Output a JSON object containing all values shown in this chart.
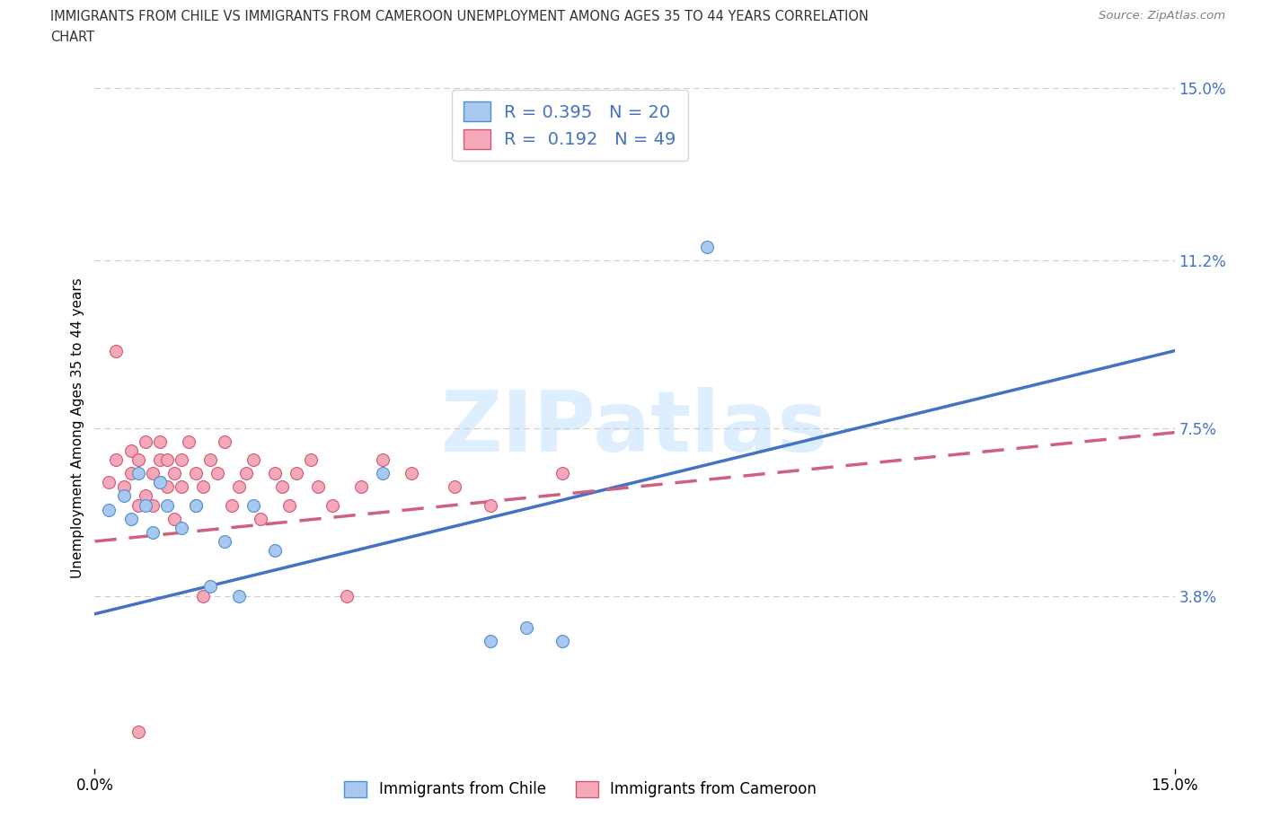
{
  "title_line1": "IMMIGRANTS FROM CHILE VS IMMIGRANTS FROM CAMEROON UNEMPLOYMENT AMONG AGES 35 TO 44 YEARS CORRELATION",
  "title_line2": "CHART",
  "source": "Source: ZipAtlas.com",
  "ylabel": "Unemployment Among Ages 35 to 44 years",
  "xlim": [
    0.0,
    0.15
  ],
  "ylim": [
    0.0,
    0.15
  ],
  "xtick_positions": [
    0.0,
    0.15
  ],
  "xtick_labels": [
    "0.0%",
    "15.0%"
  ],
  "ytick_values": [
    0.038,
    0.075,
    0.112,
    0.15
  ],
  "ytick_labels": [
    "3.8%",
    "7.5%",
    "11.2%",
    "15.0%"
  ],
  "chile_color": "#a8c8f0",
  "chile_edge": "#5090d0",
  "cameroon_color": "#f5a8b8",
  "cameroon_edge": "#d05878",
  "chile_line_color": "#4472c4",
  "cameroon_line_color": "#d06080",
  "R_chile": 0.395,
  "N_chile": 20,
  "R_cameroon": 0.192,
  "N_cameroon": 49,
  "grid_color": "#cccccc",
  "background_color": "#ffffff",
  "legend_label_chile": "Immigrants from Chile",
  "legend_label_cameroon": "Immigrants from Cameroon",
  "watermark_text": "ZIPatlas",
  "axis_label_color": "#4472c4",
  "chile_line_start_y": 0.034,
  "chile_line_end_y": 0.092,
  "cameroon_line_start_y": 0.05,
  "cameroon_line_end_y": 0.074,
  "chile_scatter_x": [
    0.002,
    0.004,
    0.005,
    0.006,
    0.007,
    0.008,
    0.009,
    0.01,
    0.012,
    0.014,
    0.016,
    0.018,
    0.02,
    0.022,
    0.025,
    0.04,
    0.055,
    0.06,
    0.065,
    0.085
  ],
  "chile_scatter_y": [
    0.057,
    0.06,
    0.055,
    0.065,
    0.058,
    0.052,
    0.063,
    0.058,
    0.053,
    0.058,
    0.04,
    0.05,
    0.038,
    0.058,
    0.048,
    0.065,
    0.028,
    0.031,
    0.028,
    0.115
  ],
  "cameroon_scatter_x": [
    0.002,
    0.003,
    0.004,
    0.005,
    0.005,
    0.006,
    0.006,
    0.007,
    0.007,
    0.008,
    0.008,
    0.009,
    0.009,
    0.009,
    0.01,
    0.01,
    0.011,
    0.011,
    0.012,
    0.012,
    0.013,
    0.014,
    0.014,
    0.015,
    0.016,
    0.017,
    0.018,
    0.019,
    0.02,
    0.021,
    0.022,
    0.023,
    0.025,
    0.026,
    0.027,
    0.028,
    0.03,
    0.031,
    0.033,
    0.035,
    0.037,
    0.04,
    0.044,
    0.05,
    0.055,
    0.065,
    0.003,
    0.006,
    0.015
  ],
  "cameroon_scatter_y": [
    0.063,
    0.068,
    0.062,
    0.065,
    0.07,
    0.058,
    0.068,
    0.06,
    0.072,
    0.065,
    0.058,
    0.068,
    0.063,
    0.072,
    0.062,
    0.068,
    0.065,
    0.055,
    0.062,
    0.068,
    0.072,
    0.065,
    0.058,
    0.062,
    0.068,
    0.065,
    0.072,
    0.058,
    0.062,
    0.065,
    0.068,
    0.055,
    0.065,
    0.062,
    0.058,
    0.065,
    0.068,
    0.062,
    0.058,
    0.038,
    0.062,
    0.068,
    0.065,
    0.062,
    0.058,
    0.065,
    0.092,
    0.008,
    0.038
  ]
}
